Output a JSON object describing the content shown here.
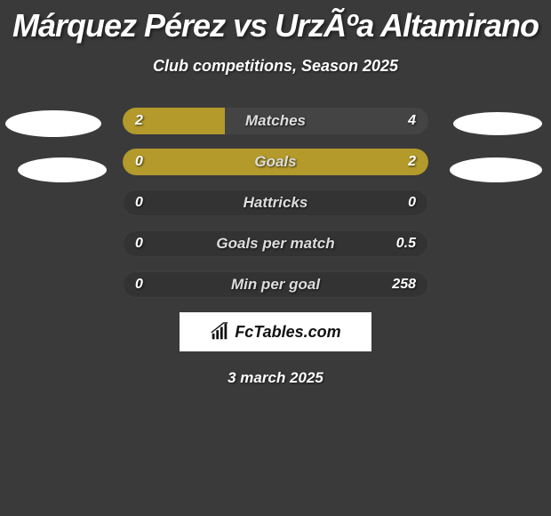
{
  "title": "Márquez Pérez vs UrzÃºa Altamirano",
  "subtitle": "Club competitions, Season 2025",
  "date": "3 march 2025",
  "logo": {
    "text": "FcTables.com"
  },
  "colors": {
    "background": "#3a3a3a",
    "bar_fill": "#b39a2b",
    "bar_dark": "#333333",
    "text": "#ffffff",
    "ellipse": "#ffffff",
    "logo_bg": "#ffffff",
    "logo_text": "#111111"
  },
  "stats": [
    {
      "label": "Matches",
      "left_value": "2",
      "right_value": "4",
      "left_pct": 33.3,
      "right_pct": 0,
      "style": "left-fill"
    },
    {
      "label": "Goals",
      "left_value": "0",
      "right_value": "2",
      "left_pct": 0,
      "right_pct": 0,
      "style": "full-olive"
    },
    {
      "label": "Hattricks",
      "left_value": "0",
      "right_value": "0",
      "left_pct": 0,
      "right_pct": 0,
      "style": "full-dark"
    },
    {
      "label": "Goals per match",
      "left_value": "0",
      "right_value": "0.5",
      "left_pct": 0,
      "right_pct": 0,
      "style": "full-dark"
    },
    {
      "label": "Min per goal",
      "left_value": "0",
      "right_value": "258",
      "left_pct": 0,
      "right_pct": 0,
      "style": "full-dark"
    }
  ]
}
